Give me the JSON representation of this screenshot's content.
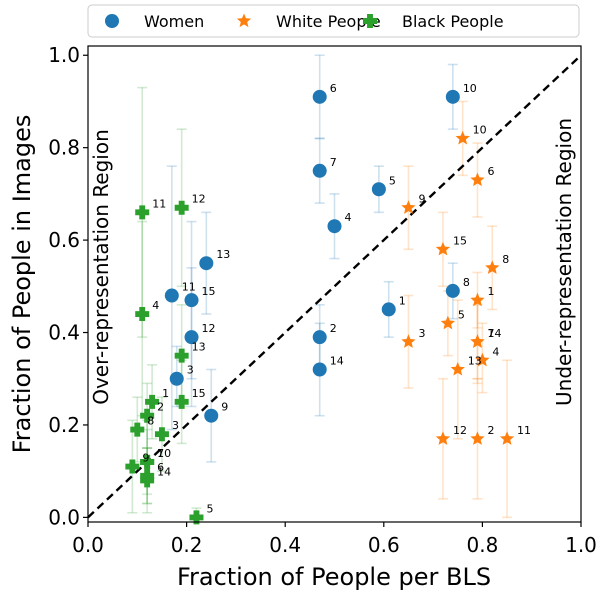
{
  "chart_data": {
    "type": "scatter",
    "xlabel": "Fraction of People per BLS",
    "ylabel": "Fraction of People in Images",
    "xlim": [
      0.0,
      1.0
    ],
    "ylim": [
      -0.01,
      1.02
    ],
    "xticks": [
      0.0,
      0.2,
      0.4,
      0.6,
      0.8,
      1.0
    ],
    "yticks": [
      0.0,
      0.2,
      0.4,
      0.6,
      0.8,
      1.0
    ],
    "xtick_labels": [
      "0.0",
      "0.2",
      "0.4",
      "0.6",
      "0.8",
      "1.0"
    ],
    "ytick_labels": [
      "0.0",
      "0.2",
      "0.4",
      "0.6",
      "0.8",
      "1.0"
    ],
    "grid": false,
    "legend_position": "top",
    "annotations": {
      "over": "Over-representation Region",
      "under": "Under-representation Region"
    },
    "diagonal": {
      "from": [
        0,
        0
      ],
      "to": [
        1,
        1
      ],
      "style": "dashed",
      "color": "#000000"
    },
    "series": [
      {
        "name": "Women",
        "marker": "circle",
        "color": "#1f77b4",
        "points": [
          {
            "label": "1",
            "x": 0.61,
            "y": 0.45,
            "err": [
              0.39,
              0.51
            ]
          },
          {
            "label": "2",
            "x": 0.47,
            "y": 0.39,
            "err": [
              0.32,
              0.46
            ]
          },
          {
            "label": "3",
            "x": 0.18,
            "y": 0.3,
            "err": [
              0.24,
              0.37
            ]
          },
          {
            "label": "4",
            "x": 0.5,
            "y": 0.63,
            "err": [
              0.56,
              0.7
            ]
          },
          {
            "label": "5",
            "x": 0.59,
            "y": 0.71,
            "err": [
              0.66,
              0.76
            ]
          },
          {
            "label": "6",
            "x": 0.47,
            "y": 0.91,
            "err": [
              0.82,
              1.0
            ]
          },
          {
            "label": "7",
            "x": 0.47,
            "y": 0.75,
            "err": [
              0.68,
              0.82
            ]
          },
          {
            "label": "8",
            "x": 0.74,
            "y": 0.49,
            "err": [
              0.43,
              0.55
            ]
          },
          {
            "label": "9",
            "x": 0.25,
            "y": 0.22,
            "err": [
              0.12,
              0.32
            ]
          },
          {
            "label": "10",
            "x": 0.74,
            "y": 0.91,
            "err": [
              0.84,
              0.98
            ]
          },
          {
            "label": "11",
            "x": 0.17,
            "y": 0.48,
            "err": [
              0.19,
              0.76
            ]
          },
          {
            "label": "12",
            "x": 0.21,
            "y": 0.39,
            "err": [
              0.24,
              0.54
            ]
          },
          {
            "label": "13",
            "x": 0.24,
            "y": 0.55,
            "err": [
              0.44,
              0.66
            ]
          },
          {
            "label": "14",
            "x": 0.47,
            "y": 0.32,
            "err": [
              0.22,
              0.42
            ]
          },
          {
            "label": "15",
            "x": 0.21,
            "y": 0.47,
            "err": [
              0.3,
              0.64
            ]
          }
        ]
      },
      {
        "name": "White People",
        "marker": "star",
        "color": "#ff7f0e",
        "points": [
          {
            "label": "1",
            "x": 0.79,
            "y": 0.47,
            "err": [
              0.41,
              0.53
            ]
          },
          {
            "label": "2",
            "x": 0.79,
            "y": 0.17,
            "err": [
              0.04,
              0.3
            ]
          },
          {
            "label": "3",
            "x": 0.65,
            "y": 0.38,
            "err": [
              0.28,
              0.48
            ]
          },
          {
            "label": "4",
            "x": 0.8,
            "y": 0.34,
            "err": [
              0.27,
              0.42
            ]
          },
          {
            "label": "5",
            "x": 0.73,
            "y": 0.42,
            "err": [
              0.35,
              0.49
            ]
          },
          {
            "label": "6",
            "x": 0.79,
            "y": 0.73,
            "err": [
              0.65,
              0.81
            ]
          },
          {
            "label": "7",
            "x": 0.79,
            "y": 0.38,
            "err": [
              0.3,
              0.46
            ]
          },
          {
            "label": "8",
            "x": 0.82,
            "y": 0.54,
            "err": [
              0.45,
              0.63
            ]
          },
          {
            "label": "9",
            "x": 0.65,
            "y": 0.67,
            "err": [
              0.58,
              0.76
            ]
          },
          {
            "label": "10",
            "x": 0.76,
            "y": 0.82,
            "err": [
              0.74,
              0.9
            ]
          },
          {
            "label": "11",
            "x": 0.85,
            "y": 0.17,
            "err": [
              0.0,
              0.34
            ]
          },
          {
            "label": "12",
            "x": 0.72,
            "y": 0.17,
            "err": [
              0.04,
              0.3
            ]
          },
          {
            "label": "13",
            "x": 0.75,
            "y": 0.32,
            "err": [
              0.17,
              0.47
            ]
          },
          {
            "label": "14",
            "x": 0.79,
            "y": 0.38,
            "err": [
              0.29,
              0.47
            ]
          },
          {
            "label": "15",
            "x": 0.72,
            "y": 0.58,
            "err": [
              0.5,
              0.66
            ]
          }
        ]
      },
      {
        "name": "Black People",
        "marker": "plus",
        "color": "#2ca02c",
        "points": [
          {
            "label": "1",
            "x": 0.13,
            "y": 0.25,
            "err": [
              0.17,
              0.33
            ]
          },
          {
            "label": "2",
            "x": 0.12,
            "y": 0.22,
            "err": [
              0.15,
              0.29
            ]
          },
          {
            "label": "3",
            "x": 0.15,
            "y": 0.18,
            "err": [
              0.1,
              0.26
            ]
          },
          {
            "label": "4",
            "x": 0.11,
            "y": 0.44,
            "err": [
              0.22,
              0.64
            ]
          },
          {
            "label": "5",
            "x": 0.22,
            "y": 0.0,
            "err": [
              0.0,
              0.02
            ]
          },
          {
            "label": "6",
            "x": 0.12,
            "y": 0.09,
            "err": [
              0.03,
              0.15
            ]
          },
          {
            "label": "7",
            "x": 0.12,
            "y": 0.12,
            "err": [
              0.05,
              0.19
            ]
          },
          {
            "label": "8",
            "x": 0.1,
            "y": 0.19,
            "err": [
              0.12,
              0.26
            ]
          },
          {
            "label": "9",
            "x": 0.09,
            "y": 0.11,
            "err": [
              0.01,
              0.21
            ]
          },
          {
            "label": "10",
            "x": 0.12,
            "y": 0.12,
            "err": [
              0.03,
              0.21
            ]
          },
          {
            "label": "11",
            "x": 0.11,
            "y": 0.66,
            "err": [
              0.39,
              0.93
            ]
          },
          {
            "label": "12",
            "x": 0.19,
            "y": 0.67,
            "err": [
              0.5,
              0.84
            ]
          },
          {
            "label": "13",
            "x": 0.19,
            "y": 0.35,
            "err": [
              0.24,
              0.46
            ]
          },
          {
            "label": "14",
            "x": 0.12,
            "y": 0.08,
            "err": [
              0.01,
              0.15
            ]
          },
          {
            "label": "15",
            "x": 0.19,
            "y": 0.25,
            "err": [
              0.16,
              0.34
            ]
          }
        ]
      }
    ]
  }
}
